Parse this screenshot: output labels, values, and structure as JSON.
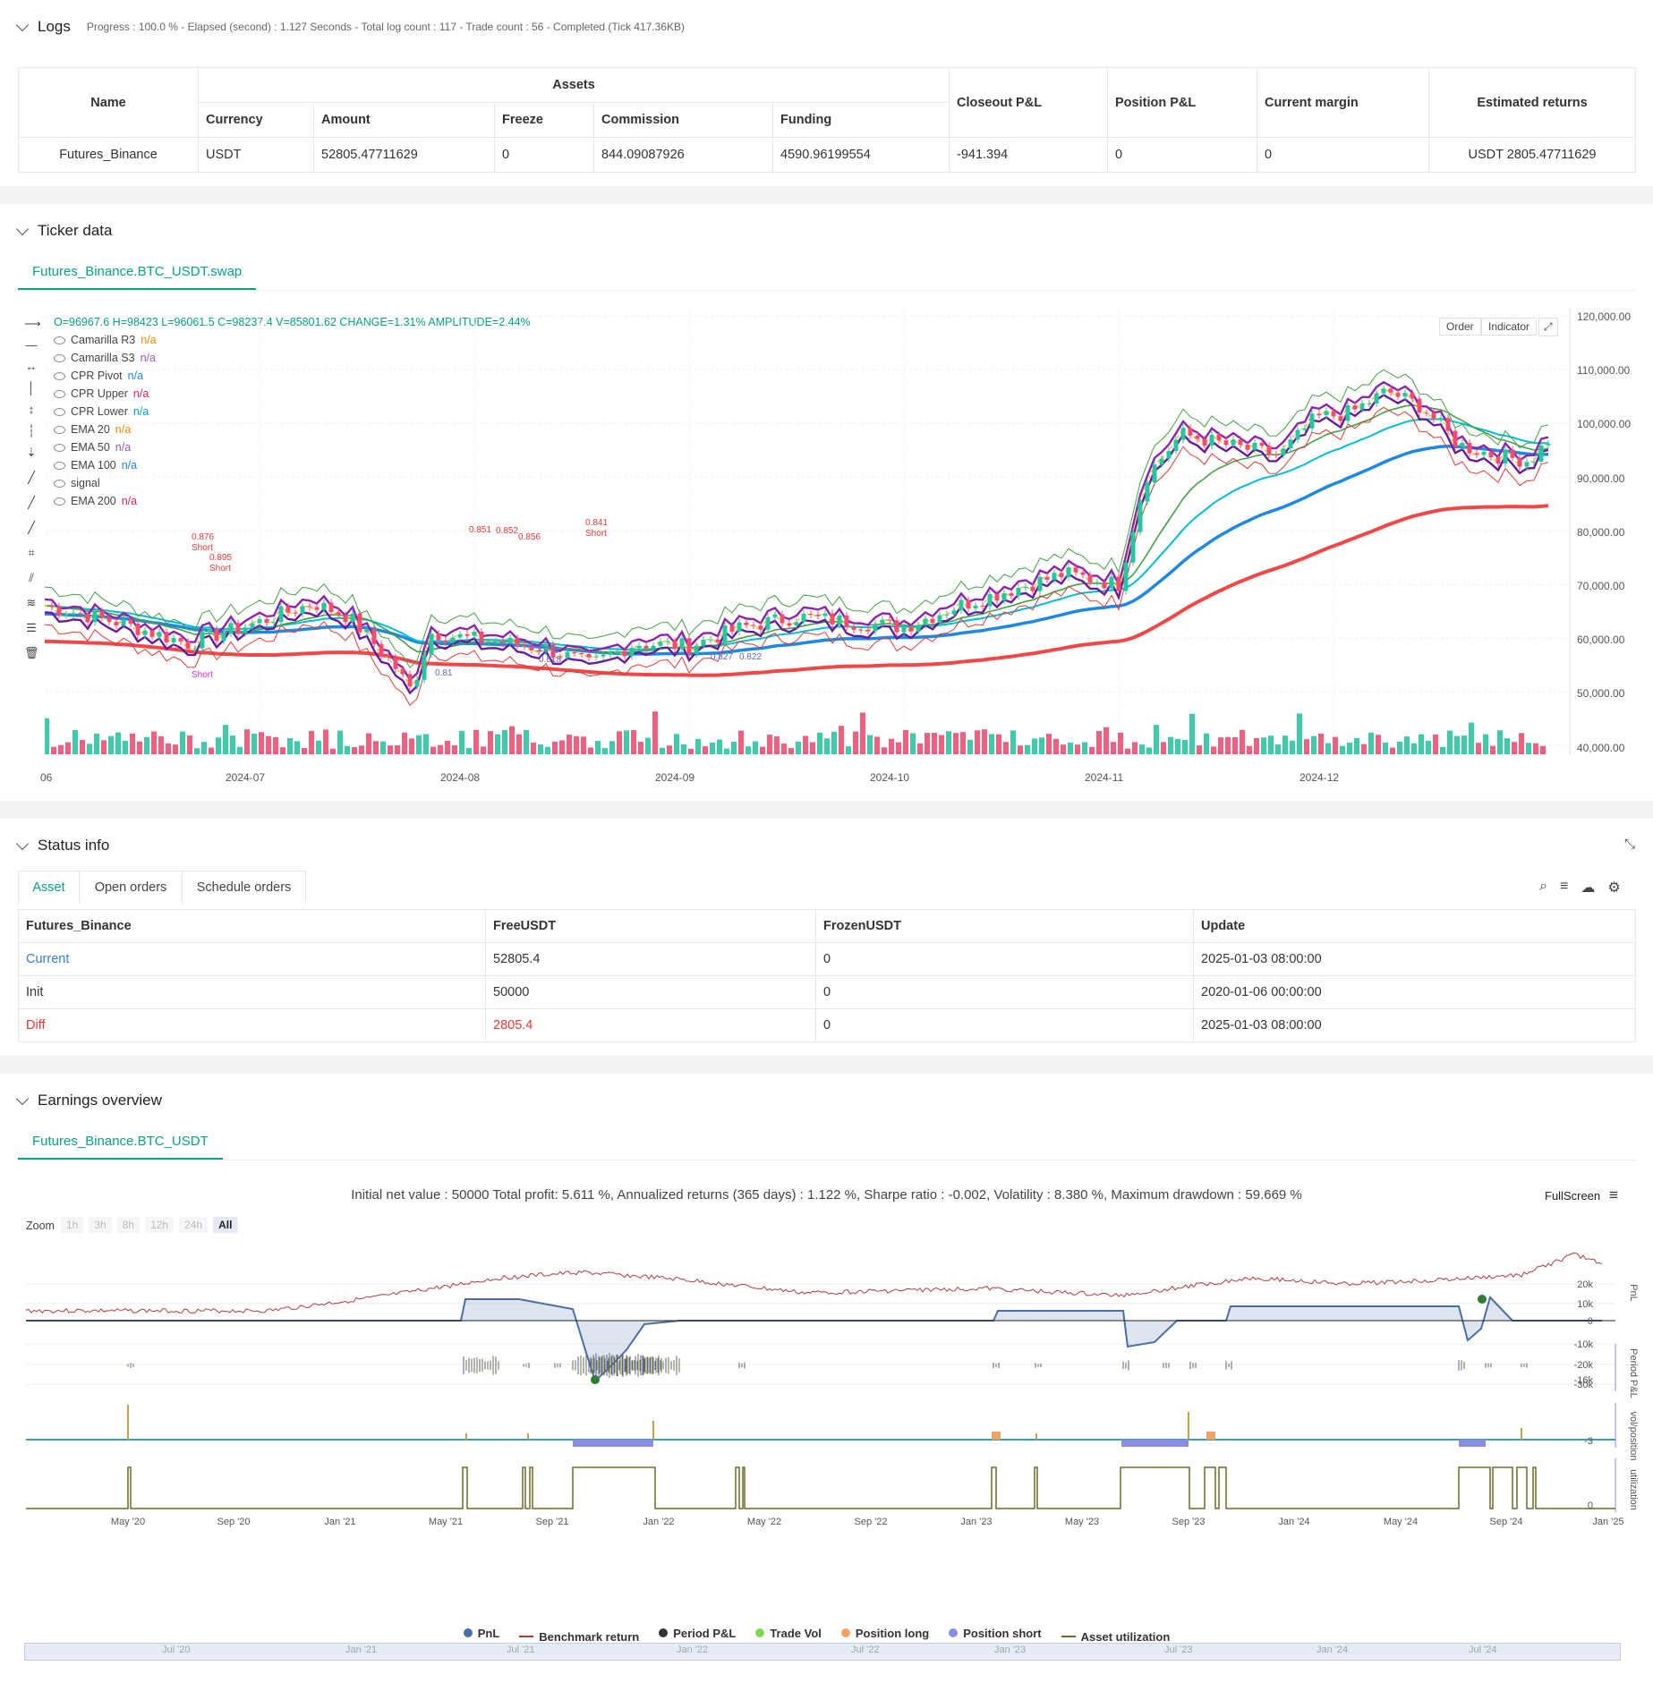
{
  "logs": {
    "title": "Logs",
    "stats": "Progress : 100.0 % - Elapsed (second) : 1.127  Seconds - Total log count : 117 - Trade count : 56 - Completed (Tick 417.36KB)",
    "table": {
      "h_name": "Name",
      "h_assets": "Assets",
      "h_currency": "Currency",
      "h_amount": "Amount",
      "h_freeze": "Freeze",
      "h_commission": "Commission",
      "h_funding": "Funding",
      "h_closeout": "Closeout P&L",
      "h_position": "Position P&L",
      "h_margin": "Current margin",
      "h_est": "Estimated returns",
      "row": {
        "name": "Futures_Binance",
        "currency": "USDT",
        "amount": "52805.47711629",
        "freeze": "0",
        "commission": "844.09087926",
        "funding": "4590.96199554",
        "closeout": "-941.394",
        "position": "0",
        "margin": "0",
        "est": "USDT 2805.47711629"
      }
    }
  },
  "ticker": {
    "title": "Ticker data",
    "tab": "Futures_Binance.BTC_USDT.swap",
    "ohlc": "O=96967.6 H=98423 L=96061.5 C=98237.4 V=85801.62 CHANGE=1.31% AMPLITUDE=2.44%",
    "legend": [
      {
        "name": "Camarilla R3",
        "val": "n/a",
        "color": "#ff8c00"
      },
      {
        "name": "Camarilla S3",
        "val": "n/a",
        "color": "#9b59b6"
      },
      {
        "name": "CPR Pivot",
        "val": "n/a",
        "color": "#1e88e5"
      },
      {
        "name": "CPR Upper",
        "val": "n/a",
        "color": "#e91e63"
      },
      {
        "name": "CPR Lower",
        "val": "n/a",
        "color": "#00acc1"
      },
      {
        "name": "EMA 20",
        "val": "n/a",
        "color": "#ff8c00"
      },
      {
        "name": "EMA 50",
        "val": "n/a",
        "color": "#9b59b6"
      },
      {
        "name": "EMA 100",
        "val": "n/a",
        "color": "#1e88e5"
      },
      {
        "name": "signal",
        "val": "",
        "color": "#444"
      },
      {
        "name": "EMA 200",
        "val": "n/a",
        "color": "#e91e63"
      }
    ],
    "buttons": {
      "order": "Order",
      "indicator": "Indicator"
    },
    "yticks": [
      "120,000.00",
      "110,000.00",
      "100,000.00",
      "90,000.00",
      "80,000.00",
      "70,000.00",
      "60,000.00",
      "50,000.00",
      "40,000.00"
    ],
    "xticks": [
      "06",
      "2024-07",
      "2024-08",
      "2024-09",
      "2024-10",
      "2024-11",
      "2024-12"
    ],
    "annotations": [
      {
        "text": "0.876",
        "color": "#e53935"
      },
      {
        "text": "Short",
        "color": "#e53935"
      },
      {
        "text": "0.895",
        "color": "#e53935"
      },
      {
        "text": "Short",
        "color": "#e53935"
      },
      {
        "text": "0.851",
        "color": "#e53935"
      },
      {
        "text": "0.852",
        "color": "#e53935"
      },
      {
        "text": "0.856",
        "color": "#e53935"
      },
      {
        "text": "0.841",
        "color": "#e53935"
      },
      {
        "text": "Short",
        "color": "#e53935"
      },
      {
        "text": "Long",
        "color": "#5c6bc0"
      },
      {
        "text": "0.818",
        "color": "#5c6bc0"
      },
      {
        "text": "0.81",
        "color": "#5c6bc0"
      },
      {
        "text": "0.827",
        "color": "#5c6bc0"
      },
      {
        "text": "0.822",
        "color": "#5c6bc0"
      },
      {
        "text": "Short",
        "color": "#cc33cc"
      }
    ]
  },
  "status": {
    "title": "Status info",
    "tabs": [
      "Asset",
      "Open orders",
      "Schedule orders"
    ],
    "headers": [
      "Futures_Binance",
      "FreeUSDT",
      "FrozenUSDT",
      "Update"
    ],
    "rows": [
      {
        "label": "Current",
        "free": "52805.4",
        "frozen": "0",
        "update": "2025-01-03 08:00:00"
      },
      {
        "label": "Init",
        "free": "50000",
        "frozen": "0",
        "update": "2020-01-06 00:00:00"
      },
      {
        "label": "Diff",
        "free": "2805.4",
        "frozen": "0",
        "update": "2025-01-03 08:00:00"
      }
    ]
  },
  "earnings": {
    "title": "Earnings overview",
    "tab": "Futures_Binance.BTC_USDT",
    "summary": "Initial net value : 50000 Total profit: 5.611 %, Annualized returns (365 days) : 1.122 %, Sharpe ratio : -0.002, Volatility : 8.380 %, Maximum drawdown : 59.669 %",
    "fullscreen": "FullScreen",
    "zoom": {
      "label": "Zoom",
      "options": [
        "1h",
        "3h",
        "8h",
        "12h",
        "24h",
        "All"
      ]
    },
    "pnl_ticks": [
      "20k",
      "10k",
      "0",
      "-10k",
      "-20k",
      "-30k"
    ],
    "period_tick": "-16k",
    "vol_tick": "-3",
    "util_tick": "0",
    "axis_titles": {
      "pnl": "PnL",
      "period": "Period P&L",
      "vol": "vol/position",
      "util": "utilization"
    },
    "xticks": [
      "May '20",
      "Sep '20",
      "Jan '21",
      "May '21",
      "Sep '21",
      "Jan '22",
      "May '22",
      "Sep '22",
      "Jan '23",
      "May '23",
      "Sep '23",
      "Jan '24",
      "May '24",
      "Sep '24",
      "Jan '25"
    ],
    "nav_ticks": [
      "Jul '20",
      "Jan '21",
      "Jul '21",
      "Jan '22",
      "Jul '22",
      "Jan '23",
      "Jul '23",
      "Jan '24",
      "Jul '24"
    ],
    "legend": [
      {
        "name": "PnL",
        "color": "#4a6fa5",
        "kind": "dot"
      },
      {
        "name": "Benchmark return",
        "color": "#b23b3b",
        "kind": "line"
      },
      {
        "name": "Period P&L",
        "color": "#333333",
        "kind": "dot"
      },
      {
        "name": "Trade Vol",
        "color": "#7ed957",
        "kind": "dot"
      },
      {
        "name": "Position long",
        "color": "#f4a261",
        "kind": "dot"
      },
      {
        "name": "Position short",
        "color": "#8c8ce6",
        "kind": "dot"
      },
      {
        "name": "Asset utilization",
        "color": "#6b6b2a",
        "kind": "line"
      }
    ]
  }
}
